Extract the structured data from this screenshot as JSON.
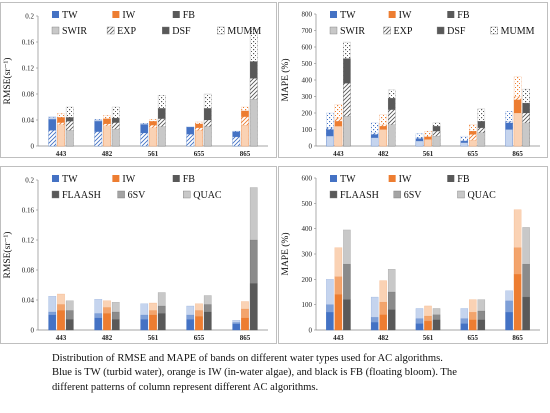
{
  "colors": {
    "TW": "#4472c4",
    "IW": "#ed7d31",
    "FB": "#404040",
    "group_light": [
      "#c5d4ee",
      "#fad2b4",
      "#c8c8c8"
    ],
    "group_dark": [
      "#4472c4",
      "#ed7d31",
      "#595959"
    ]
  },
  "caption": {
    "line1": "Distribution of RMSE and MAPE of bands on different water types used for AC algorithms.",
    "line2": "Blue is TW (turbid water), orange is IW (in-water algae), and black is FB (floating bloom). The",
    "line3": "different patterns of column represent different AC algorithms."
  },
  "chart_data": [
    {
      "type": "bar",
      "panel": "top-left",
      "ylabel": "RMSE(sr⁻¹)",
      "ylim": [
        0,
        0.2
      ],
      "yticks": [
        "0",
        "0.04",
        "0.08",
        "0.12",
        "0.16",
        "0.2"
      ],
      "categories": [
        "443",
        "482",
        "561",
        "655",
        "865"
      ],
      "legend": [
        "TW",
        "IW",
        "FB",
        "SWIR",
        "EXP",
        "DSF",
        "MUMM"
      ],
      "legend_position": "top",
      "groups": [
        "TW",
        "IW",
        "FB"
      ],
      "series": [
        {
          "name": "SWIR",
          "values": [
            [
              0.044,
              0.033,
              0.024
            ],
            [
              0.04,
              0.031,
              0.026
            ],
            [
              0.034,
              0.028,
              0.03
            ],
            [
              0.029,
              0.024,
              0.03
            ],
            [
              0.022,
              0.032,
              0.072
            ]
          ]
        },
        {
          "name": "EXP",
          "values": [
            [
              0.024,
              0.036,
              0.038
            ],
            [
              0.022,
              0.034,
              0.036
            ],
            [
              0.02,
              0.032,
              0.042
            ],
            [
              0.018,
              0.028,
              0.04
            ],
            [
              0.014,
              0.045,
              0.104
            ]
          ]
        },
        {
          "name": "DSF",
          "values": [
            [
              0.041,
              0.044,
              0.044
            ],
            [
              0.038,
              0.042,
              0.043
            ],
            [
              0.033,
              0.038,
              0.058
            ],
            [
              0.029,
              0.034,
              0.058
            ],
            [
              0.022,
              0.054,
              0.13
            ]
          ]
        },
        {
          "name": "MUMM",
          "values": [
            [
              0.045,
              0.05,
              0.06
            ],
            [
              0.041,
              0.047,
              0.06
            ],
            [
              0.035,
              0.041,
              0.078
            ],
            [
              0.03,
              0.037,
              0.08
            ],
            [
              0.023,
              0.06,
              0.18
            ]
          ]
        }
      ]
    },
    {
      "type": "bar",
      "panel": "top-right",
      "ylabel": "MAPE (%)",
      "ylim": [
        0,
        800
      ],
      "yticks": [
        "0",
        "100",
        "200",
        "300",
        "400",
        "500",
        "600",
        "700",
        "800"
      ],
      "categories": [
        "443",
        "482",
        "561",
        "655",
        "865"
      ],
      "legend": [
        "TW",
        "IW",
        "FB",
        "SWIR",
        "EXP",
        "DSF",
        "MUMM"
      ],
      "legend_position": "top",
      "groups": [
        "TW",
        "IW",
        "FB"
      ],
      "series": [
        {
          "name": "SWIR",
          "values": [
            [
              60,
              120,
              180
            ],
            [
              50,
              100,
              130
            ],
            [
              30,
              40,
              60
            ],
            [
              20,
              35,
              80
            ],
            [
              100,
              200,
              140
            ]
          ]
        },
        {
          "name": "EXP",
          "values": [
            [
              110,
              170,
              380
            ],
            [
              80,
              130,
              220
            ],
            [
              50,
              60,
              90
            ],
            [
              35,
              70,
              110
            ],
            [
              150,
              300,
              200
            ]
          ]
        },
        {
          "name": "DSF",
          "values": [
            [
              100,
              150,
              530
            ],
            [
              70,
              120,
              290
            ],
            [
              45,
              55,
              120
            ],
            [
              30,
              90,
              150
            ],
            [
              140,
              280,
              260
            ]
          ]
        },
        {
          "name": "MUMM",
          "values": [
            [
              200,
              250,
              630
            ],
            [
              140,
              190,
              340
            ],
            [
              75,
              90,
              140
            ],
            [
              60,
              130,
              225
            ],
            [
              210,
              420,
              345
            ]
          ]
        }
      ]
    },
    {
      "type": "bar",
      "panel": "bottom-left",
      "ylabel": "RMSE(sr⁻¹)",
      "ylim": [
        0,
        0.2
      ],
      "yticks": [
        "0",
        "0.04",
        "0.08",
        "0.12",
        "0.16",
        "0.2"
      ],
      "categories": [
        "443",
        "482",
        "561",
        "655",
        "865"
      ],
      "legend": [
        "TW",
        "IW",
        "FB",
        "FLAASH",
        "6SV",
        "QUAC"
      ],
      "legend_position": "top",
      "groups": [
        "TW",
        "IW",
        "FB"
      ],
      "series": [
        {
          "name": "FLAASH",
          "values": [
            [
              0.02,
              0.026,
              0.014
            ],
            [
              0.016,
              0.022,
              0.014
            ],
            [
              0.014,
              0.02,
              0.022
            ],
            [
              0.014,
              0.018,
              0.024
            ],
            [
              0.008,
              0.016,
              0.062
            ]
          ]
        },
        {
          "name": "6SV",
          "values": [
            [
              0.024,
              0.034,
              0.026
            ],
            [
              0.022,
              0.03,
              0.024
            ],
            [
              0.02,
              0.026,
              0.032
            ],
            [
              0.02,
              0.026,
              0.034
            ],
            [
              0.01,
              0.028,
              0.12
            ]
          ]
        },
        {
          "name": "QUAC",
          "values": [
            [
              0.045,
              0.048,
              0.039
            ],
            [
              0.041,
              0.039,
              0.037
            ],
            [
              0.035,
              0.036,
              0.05
            ],
            [
              0.032,
              0.035,
              0.046
            ],
            [
              0.013,
              0.038,
              0.19
            ]
          ]
        }
      ]
    },
    {
      "type": "bar",
      "panel": "bottom-right",
      "ylabel": "MAPE (%)",
      "ylim": [
        0,
        600
      ],
      "yticks": [
        "0",
        "100",
        "200",
        "300",
        "400",
        "500",
        "600"
      ],
      "categories": [
        "443",
        "482",
        "561",
        "655",
        "865"
      ],
      "legend": [
        "TW",
        "IW",
        "FB",
        "FLAASH",
        "6SV",
        "QUAC"
      ],
      "legend_position": "top",
      "groups": [
        "TW",
        "IW",
        "FB"
      ],
      "series": [
        {
          "name": "FLAASH",
          "values": [
            [
              70,
              140,
              120
            ],
            [
              30,
              60,
              80
            ],
            [
              25,
              35,
              40
            ],
            [
              25,
              40,
              40
            ],
            [
              70,
              220,
              130
            ]
          ]
        },
        {
          "name": "6SV",
          "values": [
            [
              100,
              210,
              260
            ],
            [
              50,
              110,
              150
            ],
            [
              45,
              55,
              60
            ],
            [
              45,
              70,
              75
            ],
            [
              115,
              325,
              260
            ]
          ]
        },
        {
          "name": "QUAC",
          "values": [
            [
              200,
              325,
              395
            ],
            [
              130,
              195,
              240
            ],
            [
              85,
              95,
              85
            ],
            [
              85,
              120,
              120
            ],
            [
              155,
              475,
              405
            ]
          ]
        }
      ]
    }
  ]
}
